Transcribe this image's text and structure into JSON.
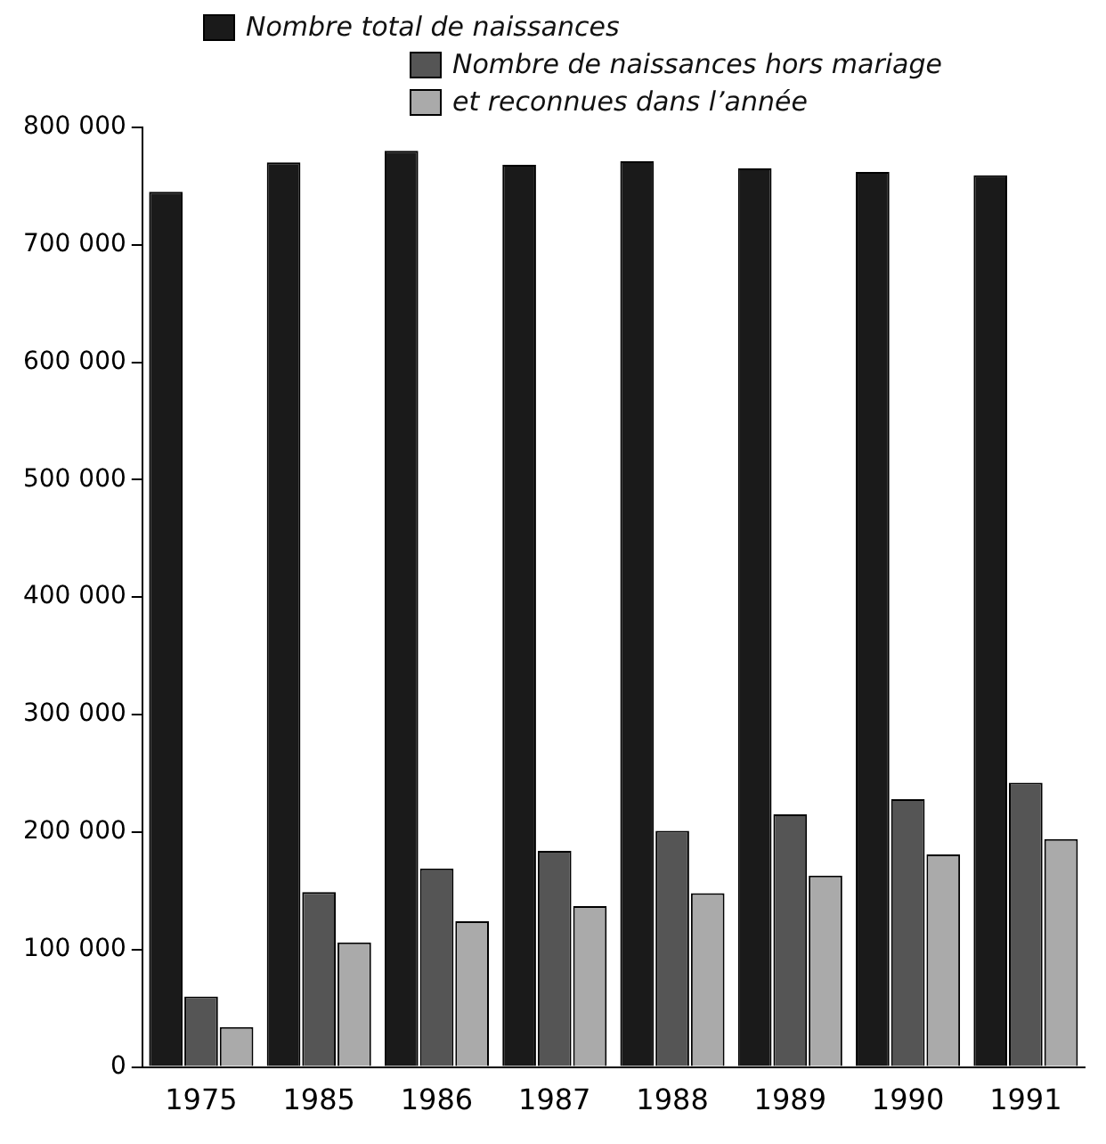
{
  "chart_data": {
    "type": "bar",
    "categories": [
      "1975",
      "1985",
      "1986",
      "1987",
      "1988",
      "1989",
      "1990",
      "1991"
    ],
    "series": [
      {
        "name": "Nombre total de naissances",
        "color": "#1a1a1a",
        "values": [
          745000,
          770000,
          780000,
          768000,
          771000,
          765000,
          762000,
          759000
        ]
      },
      {
        "name": "Nombre de naissances hors mariage",
        "color": "#555555",
        "values": [
          60000,
          149000,
          169000,
          184000,
          201000,
          215000,
          228000,
          242000
        ]
      },
      {
        "name": "et reconnues dans l’année",
        "color": "#aaaaaa",
        "values": [
          34000,
          106000,
          124000,
          137000,
          148000,
          163000,
          181000,
          194000
        ]
      }
    ],
    "ylim": [
      0,
      800000
    ],
    "yticks": [
      {
        "value": 0,
        "label": "0"
      },
      {
        "value": 100000,
        "label": "100 000"
      },
      {
        "value": 200000,
        "label": "200 000"
      },
      {
        "value": 300000,
        "label": "300 000"
      },
      {
        "value": 400000,
        "label": "400 000"
      },
      {
        "value": 500000,
        "label": "500 000"
      },
      {
        "value": 600000,
        "label": "600 000"
      },
      {
        "value": 700000,
        "label": "700 000"
      },
      {
        "value": 800000,
        "label": "800 000"
      }
    ],
    "grid": false,
    "legend": "top"
  }
}
